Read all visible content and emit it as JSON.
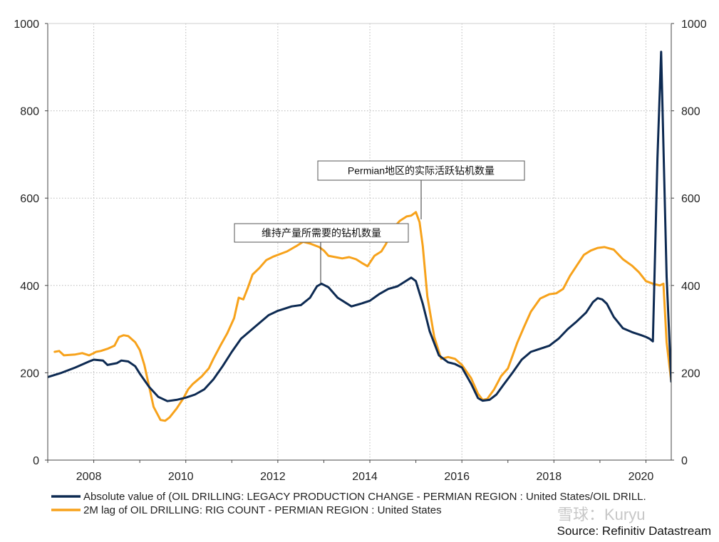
{
  "chart_data": {
    "type": "line",
    "title": "",
    "xlabel": "",
    "ylabel": "",
    "xlim": [
      2007.0,
      2020.55
    ],
    "ylim": [
      0,
      1000
    ],
    "y_ticks": [
      0,
      200,
      400,
      600,
      800,
      1000
    ],
    "y_tick_labels": [
      "0",
      "200",
      "400",
      "600",
      "800",
      "1000"
    ],
    "x_ticks": [
      2008,
      2010,
      2012,
      2014,
      2016,
      2018,
      2020
    ],
    "x_tick_labels": [
      "2008",
      "2010",
      "2012",
      "2014",
      "2016",
      "2018",
      "2020"
    ],
    "secondary_y_axis": true,
    "grid": true,
    "legend_position": "bottom-left",
    "series": [
      {
        "name": "Absolute value of (OIL DRILLING: LEGACY PRODUCTION CHANGE - PERMIAN REGION : United States/OIL DRILL.",
        "color": "#0d2a52",
        "x": [
          2007.0,
          2007.3,
          2007.6,
          2007.9,
          2008.0,
          2008.2,
          2008.3,
          2008.5,
          2008.6,
          2008.75,
          2008.9,
          2009.0,
          2009.2,
          2009.4,
          2009.6,
          2009.8,
          2010.0,
          2010.2,
          2010.4,
          2010.6,
          2010.8,
          2011.0,
          2011.2,
          2011.5,
          2011.8,
          2012.0,
          2012.3,
          2012.5,
          2012.7,
          2012.85,
          2012.95,
          2013.1,
          2013.3,
          2013.6,
          2013.8,
          2014.0,
          2014.2,
          2014.4,
          2014.6,
          2014.75,
          2014.9,
          2015.0,
          2015.15,
          2015.3,
          2015.5,
          2015.7,
          2015.85,
          2016.0,
          2016.2,
          2016.35,
          2016.45,
          2016.6,
          2016.75,
          2016.9,
          2017.1,
          2017.3,
          2017.5,
          2017.7,
          2017.9,
          2018.1,
          2018.3,
          2018.5,
          2018.7,
          2018.85,
          2018.95,
          2019.05,
          2019.15,
          2019.3,
          2019.5,
          2019.7,
          2019.9,
          2020.0,
          2020.08,
          2020.15,
          2020.25,
          2020.33,
          2020.45,
          2020.55
        ],
        "values": [
          190,
          200,
          212,
          226,
          230,
          228,
          218,
          222,
          228,
          226,
          215,
          198,
          168,
          145,
          135,
          138,
          143,
          150,
          162,
          185,
          215,
          248,
          278,
          305,
          332,
          342,
          352,
          355,
          372,
          398,
          404,
          396,
          372,
          352,
          358,
          365,
          380,
          392,
          398,
          408,
          418,
          410,
          358,
          295,
          240,
          224,
          220,
          212,
          175,
          142,
          136,
          138,
          150,
          172,
          200,
          230,
          248,
          255,
          262,
          278,
          300,
          318,
          338,
          362,
          371,
          368,
          358,
          328,
          302,
          293,
          286,
          282,
          278,
          272,
          690,
          935,
          420,
          180
        ]
      },
      {
        "name": "2M lag of OIL DRILLING: RIG COUNT - PERMIAN REGION : United States",
        "color": "#f7a21b",
        "x": [
          2007.15,
          2007.25,
          2007.35,
          2007.6,
          2007.75,
          2007.9,
          2008.0,
          2008.05,
          2008.15,
          2008.3,
          2008.45,
          2008.55,
          2008.65,
          2008.75,
          2008.9,
          2009.0,
          2009.1,
          2009.2,
          2009.3,
          2009.45,
          2009.55,
          2009.65,
          2009.8,
          2009.95,
          2010.05,
          2010.15,
          2010.35,
          2010.5,
          2010.6,
          2010.75,
          2010.9,
          2011.05,
          2011.15,
          2011.25,
          2011.35,
          2011.45,
          2011.6,
          2011.75,
          2011.9,
          2012.0,
          2012.2,
          2012.4,
          2012.55,
          2012.7,
          2012.9,
          2013.0,
          2013.1,
          2013.25,
          2013.4,
          2013.55,
          2013.7,
          2013.85,
          2013.95,
          2014.1,
          2014.25,
          2014.35,
          2014.5,
          2014.65,
          2014.8,
          2014.9,
          2015.0,
          2015.08,
          2015.15,
          2015.25,
          2015.4,
          2015.55,
          2015.7,
          2015.85,
          2016.0,
          2016.2,
          2016.35,
          2016.45,
          2016.55,
          2016.7,
          2016.85,
          2017.0,
          2017.2,
          2017.35,
          2017.5,
          2017.7,
          2017.9,
          2018.05,
          2018.2,
          2018.35,
          2018.5,
          2018.65,
          2018.8,
          2018.95,
          2019.1,
          2019.3,
          2019.5,
          2019.7,
          2019.85,
          2020.0,
          2020.15,
          2020.3,
          2020.38,
          2020.45,
          2020.55
        ],
        "values": [
          248,
          250,
          240,
          242,
          245,
          240,
          245,
          248,
          250,
          255,
          262,
          282,
          286,
          284,
          270,
          252,
          218,
          170,
          122,
          92,
          90,
          98,
          118,
          142,
          162,
          174,
          192,
          210,
          232,
          262,
          290,
          325,
          372,
          368,
          395,
          425,
          440,
          458,
          466,
          470,
          478,
          490,
          500,
          496,
          488,
          480,
          468,
          465,
          462,
          465,
          460,
          450,
          444,
          468,
          478,
          495,
          530,
          548,
          558,
          560,
          568,
          545,
          490,
          375,
          282,
          232,
          236,
          232,
          218,
          188,
          152,
          138,
          140,
          162,
          192,
          210,
          268,
          305,
          340,
          370,
          380,
          382,
          392,
          422,
          446,
          470,
          480,
          486,
          488,
          482,
          460,
          445,
          430,
          410,
          404,
          400,
          404,
          270,
          180
        ]
      }
    ],
    "annotations": [
      {
        "text": "Permian地区的实际活跃钻机数量",
        "target_x": 2015.0,
        "target_y": 565
      },
      {
        "text": "维持产量所需要的钻机数量",
        "target_x": 2012.95,
        "target_y": 404
      }
    ],
    "source": "Source: Refinitiv Datastream"
  },
  "watermark": "雪球：Kuryu"
}
